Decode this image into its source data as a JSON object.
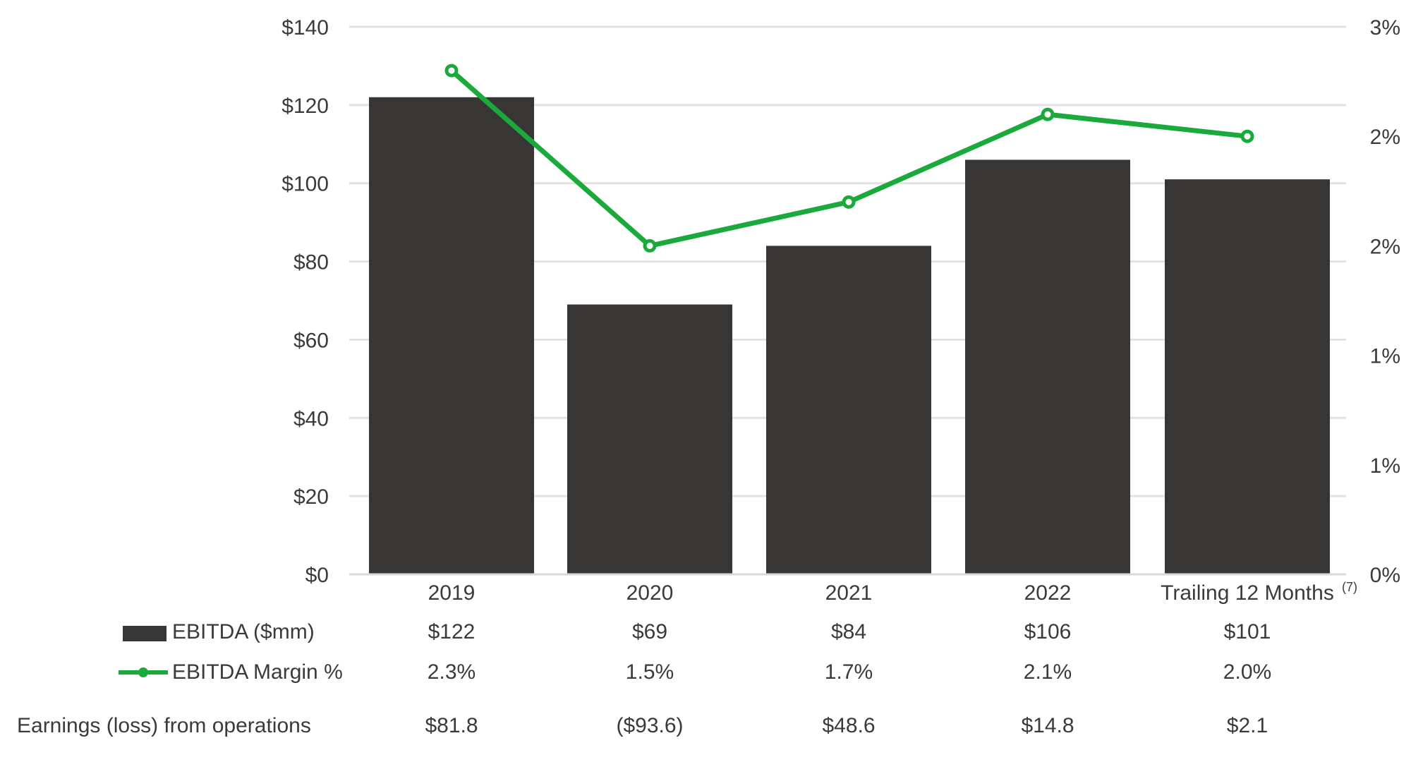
{
  "colors": {
    "bar": "#373634",
    "line": "#1aaa3c",
    "grid": "#e2e2e2",
    "text": "#3a3a3a"
  },
  "chart_data": {
    "type": "bar",
    "categories": [
      "2019",
      "2020",
      "2021",
      "2022",
      "Trailing 12 Months"
    ],
    "category_footnote": "(7)",
    "y_left": {
      "ticks": [
        "$0",
        "$20",
        "$40",
        "$60",
        "$80",
        "$100",
        "$120",
        "$140"
      ],
      "ylim": [
        0,
        140
      ]
    },
    "y_right": {
      "ticks": [
        "0%",
        "1%",
        "1%",
        "2%",
        "2%",
        "3%"
      ],
      "ylim": [
        0,
        2.5
      ]
    },
    "grid": true,
    "series": [
      {
        "name": "EBITDA ($mm)",
        "type": "bar",
        "axis": "left",
        "values": [
          122,
          69,
          84,
          106,
          101
        ],
        "labels": [
          "$122",
          "$69",
          "$84",
          "$106",
          "$101"
        ]
      },
      {
        "name": "EBITDA Margin %",
        "type": "line",
        "axis": "right",
        "marker": "circle",
        "values": [
          2.3,
          1.5,
          1.7,
          2.1,
          2.0
        ],
        "labels": [
          "2.3%",
          "1.5%",
          "1.7%",
          "2.1%",
          "2.0%"
        ]
      }
    ],
    "table_rows": [
      {
        "label": "Earnings (loss) from operations",
        "values": [
          "$81.8",
          "($93.6)",
          "$48.6",
          "$14.8",
          "$2.1"
        ]
      }
    ]
  }
}
